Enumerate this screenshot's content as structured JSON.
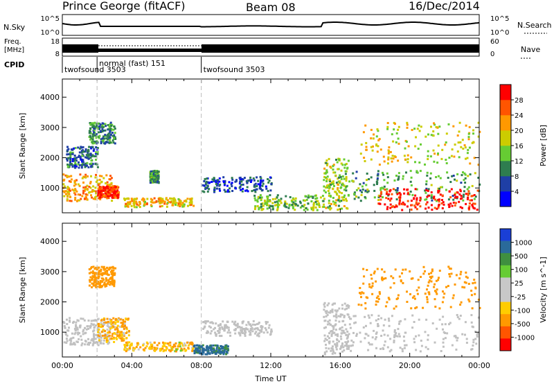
{
  "header": {
    "station": "Prince George (fitACF)",
    "beam": "Beam 08",
    "date": "16/Dec/2014"
  },
  "panels": {
    "nsky": {
      "label": "N.Sky",
      "tick_top": "10^5",
      "tick_bottom": "10^0"
    },
    "nsearch": {
      "label": "N.Search",
      "tick_top": "10^5",
      "tick_bottom": "10^0"
    },
    "freq": {
      "label_line1": "Freq.",
      "label_line2": "[MHz]",
      "tick_top": "18",
      "tick_bottom": "8"
    },
    "nave": {
      "label": "Nave",
      "tick_top": "60",
      "tick_bottom": "0"
    },
    "cpid": {
      "label": "CPID",
      "segments": [
        {
          "start_hour": 0,
          "end_hour": 2,
          "text": "twofsound 3503"
        },
        {
          "start_hour": 2,
          "end_hour": 8,
          "text": "normal (fast) 151"
        },
        {
          "start_hour": 8,
          "end_hour": 24,
          "text": "twofsound 3503"
        }
      ]
    }
  },
  "colors": {
    "power": [
      "#0000ff",
      "#1f3fa6",
      "#2e7d4f",
      "#66cc33",
      "#cccc00",
      "#ff9900",
      "#ff5500",
      "#ff0000"
    ],
    "velocity": [
      "#1a3fd6",
      "#2a6a9a",
      "#3f8f3f",
      "#66cc33",
      "#c8c8c8",
      "#c8c8c8",
      "#ffcc00",
      "#ff9900",
      "#ff5500",
      "#ff0000"
    ],
    "ground_scatter": "#c0c0c0"
  },
  "chart_data": [
    {
      "type": "heatmap",
      "name": "power",
      "xlabel": "",
      "ylabel": "Slant Range [km]",
      "xlim": [
        0,
        24
      ],
      "ylim": [
        180,
        4600
      ],
      "yticks": [
        1000,
        2000,
        3000,
        4000
      ],
      "colorbar": {
        "label": "Power [dB]",
        "ticks": [
          "4",
          "8",
          "12",
          "16",
          "20",
          "24",
          "28"
        ],
        "range": [
          0,
          32
        ]
      },
      "regions": [
        {
          "t": [
            0.0,
            2.8
          ],
          "r": [
            600,
            1500
          ],
          "v": 22
        },
        {
          "t": [
            2.0,
            3.2
          ],
          "r": [
            700,
            1100
          ],
          "v": 28
        },
        {
          "t": [
            0.2,
            2.0
          ],
          "r": [
            1700,
            2400
          ],
          "v": 8
        },
        {
          "t": [
            1.5,
            3.0
          ],
          "r": [
            2500,
            3200
          ],
          "v": 10
        },
        {
          "t": [
            3.5,
            7.5
          ],
          "r": [
            400,
            700
          ],
          "v": 20
        },
        {
          "t": [
            5.0,
            5.5
          ],
          "r": [
            1200,
            1600
          ],
          "v": 12
        },
        {
          "t": [
            8.0,
            12.0
          ],
          "r": [
            900,
            1400
          ],
          "v": 6
        },
        {
          "t": [
            11.0,
            15.0
          ],
          "r": [
            300,
            800
          ],
          "v": 14
        },
        {
          "t": [
            15.0,
            16.5
          ],
          "r": [
            300,
            2000
          ],
          "v": 16
        },
        {
          "t": [
            16.5,
            24.0
          ],
          "r": [
            600,
            1600
          ],
          "v": 12
        },
        {
          "t": [
            18.0,
            24.0
          ],
          "r": [
            300,
            1000
          ],
          "v": 30
        },
        {
          "t": [
            17.0,
            24.0
          ],
          "r": [
            1800,
            3200
          ],
          "v": 18
        }
      ]
    },
    {
      "type": "heatmap",
      "name": "velocity",
      "xlabel": "Time UT",
      "ylabel": "Slant Range [km]",
      "xlim": [
        0,
        24
      ],
      "ylim": [
        180,
        4600
      ],
      "xticks": [
        "00:00",
        "04:00",
        "08:00",
        "12:00",
        "16:00",
        "20:00",
        "00:00"
      ],
      "yticks": [
        1000,
        2000,
        3000,
        4000
      ],
      "colorbar": {
        "label": "Velocity [m s^-1]",
        "ticks": [
          "1000",
          "500",
          "100",
          "25",
          "-25",
          "-100",
          "-500",
          "-1000"
        ]
      },
      "regions": [
        {
          "t": [
            0.0,
            2.8
          ],
          "r": [
            600,
            1500
          ],
          "v": 0,
          "ground": true
        },
        {
          "t": [
            2.0,
            3.8
          ],
          "r": [
            700,
            1500
          ],
          "v": -100
        },
        {
          "t": [
            1.5,
            3.0
          ],
          "r": [
            2500,
            3200
          ],
          "v": -400
        },
        {
          "t": [
            3.5,
            7.5
          ],
          "r": [
            400,
            700
          ],
          "v": -80
        },
        {
          "t": [
            7.5,
            9.5
          ],
          "r": [
            300,
            600
          ],
          "v": 150
        },
        {
          "t": [
            8.0,
            12.0
          ],
          "r": [
            900,
            1400
          ],
          "v": 0,
          "ground": true
        },
        {
          "t": [
            15.0,
            16.5
          ],
          "r": [
            300,
            2000
          ],
          "v": 0,
          "ground": true
        },
        {
          "t": [
            16.5,
            24.0
          ],
          "r": [
            400,
            1600
          ],
          "v": 0,
          "ground": true
        },
        {
          "t": [
            17.0,
            24.0
          ],
          "r": [
            1800,
            3200
          ],
          "v": -300
        }
      ]
    }
  ]
}
